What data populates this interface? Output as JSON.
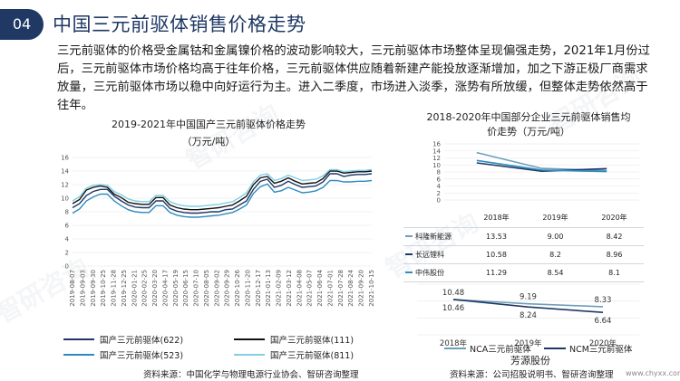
{
  "header": {
    "badge": "04",
    "title": "中国三元前驱体销售价格走势"
  },
  "body_text": "三元前驱体的价格受金属钴和金属镍价格的波动影响较大，三元前驱体市场整体呈现偏强走势，2021年1月份过后，三元前驱体市场价格均高于往年价格，三元前驱体供应随着新建产能投放逐渐增加，加之下游正极厂商需求放量，三元前驱体市场以稳中向好运行为主。进入二季度，市场进入淡季，涨势有所放缓，但整体走势依然高于往年。",
  "footer": {
    "source_left": "资料来源：中国化学与物理电源行业协会、智研咨询整理",
    "source_right": "资料来源：公司招股说明书、智研咨询整理",
    "url": "www.chyxx.com"
  },
  "watermark": "智研咨询",
  "chart_data": [
    {
      "type": "line",
      "title": "2019-2021年中国国产三元前驱体价格走势",
      "subtitle": "（万元/吨）",
      "ylim": [
        0,
        16
      ],
      "y_ticks": [
        "0",
        "2",
        "4",
        "6",
        "8",
        "10",
        "12",
        "14",
        "16"
      ],
      "x_tick_labels": [
        "2019-08-07",
        "2019-09-03",
        "2019-09-30",
        "2019-10-25",
        "2019-11-28",
        "2019-12-25",
        "2020-01-21",
        "2020-02-25",
        "2020-03-20",
        "2020-04-17",
        "2020-05-19",
        "2020-06-15",
        "2020-07-10",
        "2020-08-05",
        "2020-09-02",
        "2020-09-29",
        "2020-10-26",
        "2020-11-20",
        "2020-12-17",
        "2021-01-13",
        "2021-02-09",
        "2021-03-12",
        "2021-04-08",
        "2021-05-07",
        "2021-06-04",
        "2021-07-01",
        "2021-07-28",
        "2021-08-24",
        "2021-09-20",
        "2021-10-15"
      ],
      "grid": true,
      "legend_position": "bottom",
      "series": [
        {
          "name": "国产三元前驱体(622)",
          "color": "#1f3864",
          "values": [
            8.6,
            9.2,
            10.4,
            11.0,
            11.3,
            11.3,
            10.3,
            9.6,
            9.0,
            8.7,
            8.6,
            8.6,
            9.6,
            9.6,
            8.5,
            8.1,
            7.9,
            7.8,
            7.8,
            7.9,
            8.0,
            8.0,
            8.3,
            8.4,
            9.0,
            9.6,
            11.3,
            12.5,
            12.8,
            11.6,
            11.9,
            12.5,
            12.0,
            11.6,
            11.7,
            11.8,
            12.4,
            13.6,
            13.6,
            13.2,
            13.4,
            13.5,
            13.5,
            13.6
          ]
        },
        {
          "name": "国产三元前驱体(111)",
          "color": "#111111",
          "values": [
            9.2,
            9.8,
            11.2,
            11.6,
            11.8,
            11.6,
            10.6,
            10.1,
            9.4,
            9.2,
            9.1,
            9.1,
            10.1,
            10.1,
            9.0,
            8.6,
            8.4,
            8.3,
            8.3,
            8.4,
            8.5,
            8.6,
            8.8,
            9.0,
            9.6,
            10.3,
            12.0,
            13.0,
            13.2,
            12.2,
            12.5,
            13.0,
            12.5,
            12.1,
            12.2,
            12.3,
            12.9,
            14.0,
            14.0,
            13.7,
            13.8,
            13.9,
            13.9,
            14.0
          ]
        },
        {
          "name": "国产三元前驱体(523)",
          "color": "#2e8bc0",
          "values": [
            7.8,
            8.4,
            9.6,
            10.2,
            10.6,
            10.6,
            9.6,
            8.9,
            8.3,
            8.0,
            7.9,
            7.9,
            8.9,
            8.9,
            7.9,
            7.5,
            7.3,
            7.2,
            7.2,
            7.3,
            7.4,
            7.5,
            7.7,
            7.9,
            8.4,
            9.0,
            10.7,
            11.7,
            12.1,
            10.9,
            11.1,
            11.6,
            11.2,
            10.8,
            10.9,
            11.1,
            11.6,
            12.6,
            12.6,
            12.4,
            12.4,
            12.5,
            12.5,
            12.6
          ]
        },
        {
          "name": "国产三元前驱体(811)",
          "color": "#7ecfe6",
          "values": [
            9.6,
            10.2,
            11.5,
            11.9,
            12.0,
            11.9,
            11.0,
            10.5,
            9.9,
            9.6,
            9.5,
            9.5,
            10.4,
            10.4,
            9.5,
            9.1,
            8.9,
            8.8,
            8.8,
            8.9,
            9.0,
            9.1,
            9.3,
            9.5,
            10.1,
            10.8,
            12.4,
            13.4,
            13.6,
            12.6,
            12.9,
            13.4,
            13.0,
            12.6,
            12.7,
            12.8,
            13.3,
            14.2,
            14.2,
            13.9,
            14.0,
            14.1,
            14.1,
            14.2
          ]
        }
      ]
    },
    {
      "type": "line",
      "title": "2018-2020年中国部分企业三元前驱体销售均价走势（万元/吨）",
      "categories": [
        "2018年",
        "2019年",
        "2020年"
      ],
      "ylim": [
        0,
        16
      ],
      "y_ticks": [
        "0",
        "2",
        "4",
        "6",
        "8",
        "10",
        "12",
        "14",
        "16"
      ],
      "series": [
        {
          "name": "科隆新能源",
          "color": "#6d9fb8",
          "values": [
            13.53,
            9.0,
            8.42
          ]
        },
        {
          "name": "长远锂科",
          "color": "#1f3864",
          "values": [
            10.58,
            8.2,
            8.96
          ]
        },
        {
          "name": "中伟股份",
          "color": "#2e8bc0",
          "values": [
            11.29,
            8.54,
            8.1
          ]
        }
      ],
      "table": {
        "header": [
          "",
          "2018年",
          "2019年",
          "2020年"
        ],
        "rows": [
          {
            "name": "科隆新能源",
            "cells": [
              "13.53",
              "9.00",
              "8.42"
            ]
          },
          {
            "name": "长远锂科",
            "cells": [
              "10.58",
              "8.2",
              "8.96"
            ]
          },
          {
            "name": "中伟股份",
            "cells": [
              "11.29",
              "8.54",
              "8.1"
            ]
          }
        ]
      }
    },
    {
      "type": "line",
      "title": "芳源股份",
      "categories": [
        "2018年",
        "2019年",
        "2020年"
      ],
      "ylim": [
        0,
        15
      ],
      "y_ticks": [
        "0",
        "5",
        "10",
        "15"
      ],
      "series": [
        {
          "name": "NCA三元前驱体",
          "color": "#6d9fb8",
          "values": [
            10.48,
            9.19,
            8.33
          ],
          "labels": [
            "10.48",
            "9.19",
            "8.33"
          ]
        },
        {
          "name": "NCM三元前驱体",
          "color": "#1f3864",
          "values": [
            10.46,
            8.24,
            6.64
          ],
          "labels": [
            "10.46",
            "8.24",
            "6.64"
          ]
        }
      ]
    }
  ]
}
